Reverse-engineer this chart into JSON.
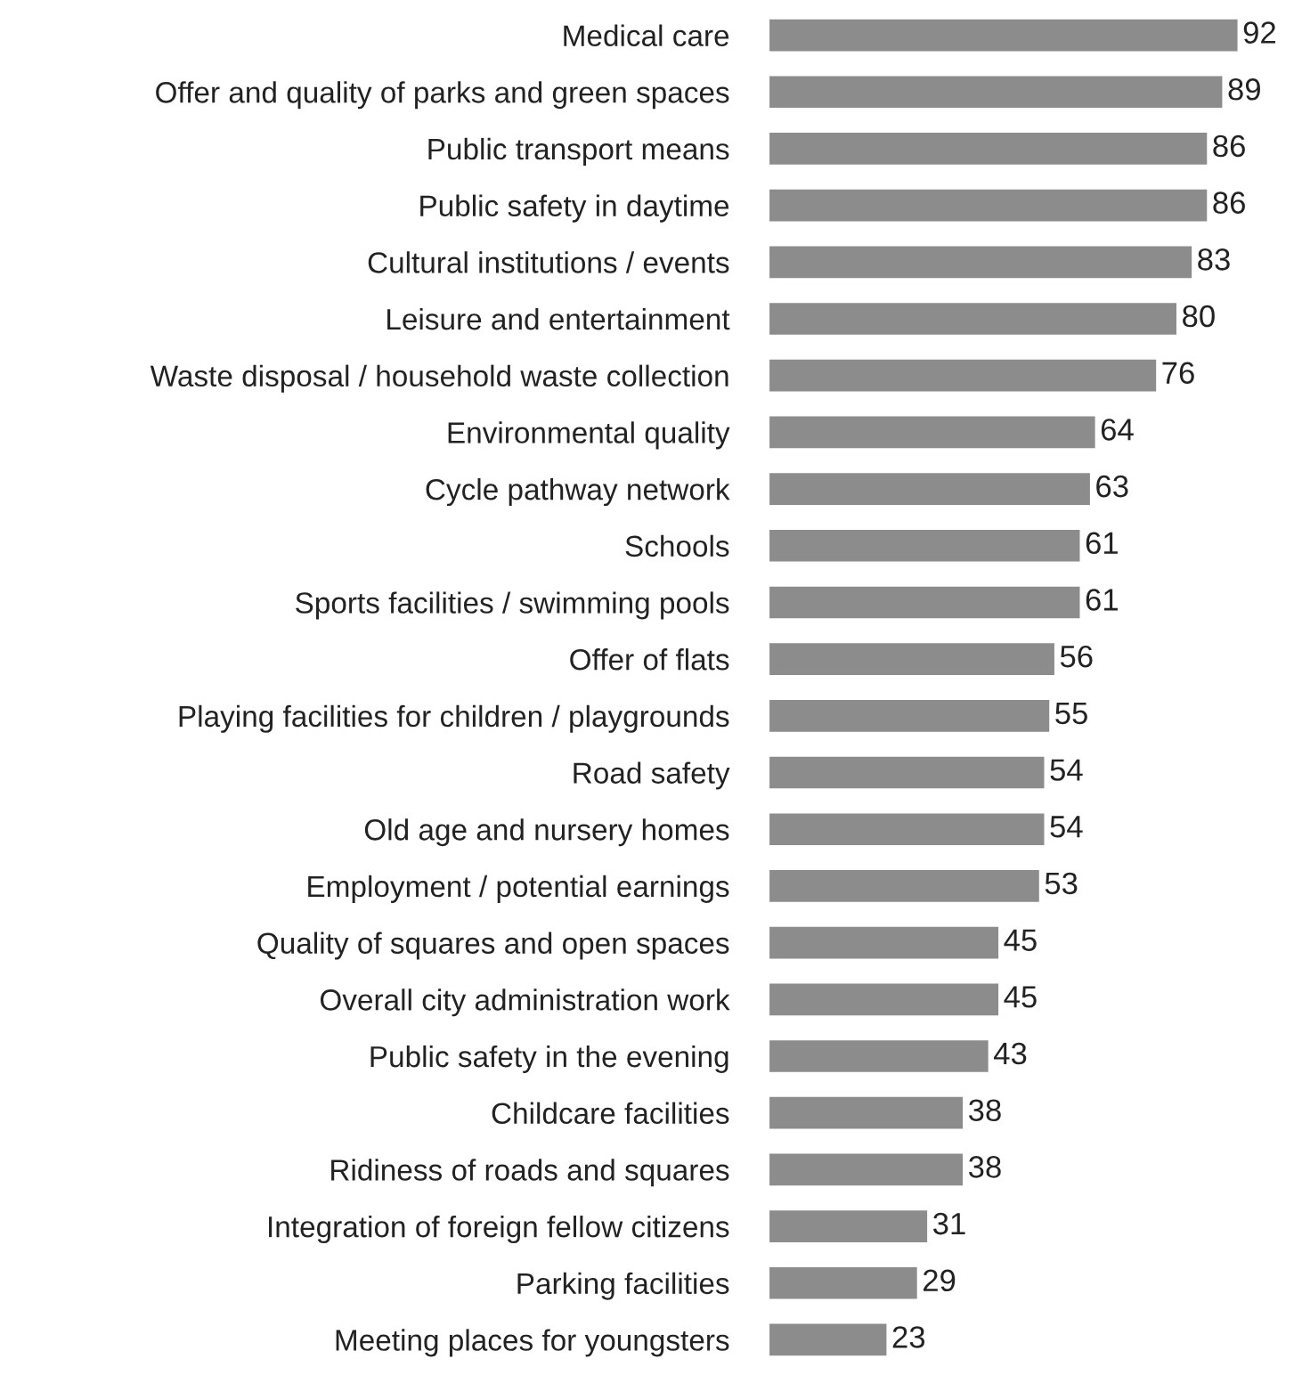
{
  "chart_data": {
    "type": "bar",
    "orientation": "horizontal",
    "categories": [
      "Medical care",
      "Offer and quality of parks and green spaces",
      "Public transport means",
      "Public safety in daytime",
      "Cultural institutions / events",
      "Leisure and entertainment",
      "Waste disposal / household waste collection",
      "Environmental quality",
      "Cycle pathway network",
      "Schools",
      "Sports facilities / swimming pools",
      "Offer of flats",
      "Playing facilities for children / playgrounds",
      "Road safety",
      "Old age and nursery homes",
      "Employment / potential earnings",
      "Quality of squares and open spaces",
      "Overall city administration work",
      "Public safety in the evening",
      "Childcare facilities",
      "Ridiness of roads and squares",
      "Integration of foreign fellow citizens",
      "Parking facilities",
      "Meeting places for youngsters"
    ],
    "values": [
      92,
      89,
      86,
      86,
      83,
      80,
      76,
      64,
      63,
      61,
      61,
      56,
      55,
      54,
      54,
      53,
      45,
      45,
      43,
      38,
      38,
      31,
      29,
      23
    ],
    "color": "#8c8c8c",
    "data_labels": true,
    "grid": false,
    "legend": false,
    "tick_labels": "y"
  }
}
